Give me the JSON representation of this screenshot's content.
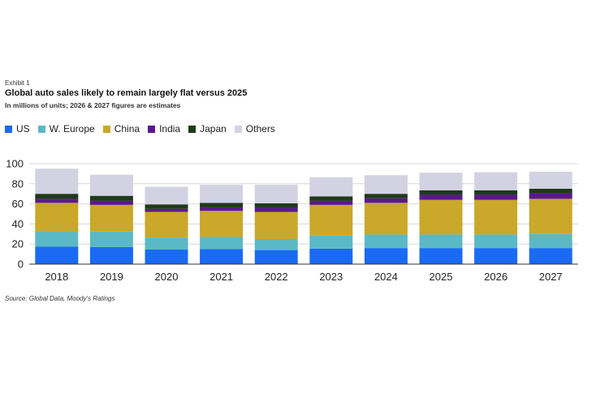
{
  "header": {
    "exhibit": "Exhibit 1",
    "title": "Global auto sales likely to remain largely flat versus 2025",
    "subtitle": "In millions of units; 2026 & 2027 figures are estimates"
  },
  "footer": {
    "source": "Source: Global Data, Moody's Ratings"
  },
  "chart_data": {
    "type": "bar",
    "stacked": true,
    "categories": [
      "2018",
      "2019",
      "2020",
      "2021",
      "2022",
      "2023",
      "2024",
      "2025",
      "2026",
      "2027"
    ],
    "series": [
      {
        "name": "US",
        "color": "#1a6af4",
        "values": [
          17.5,
          17,
          14.5,
          15,
          14,
          15.5,
          16,
          16,
          16,
          16
        ]
      },
      {
        "name": "W. Europe",
        "color": "#5bb9c5",
        "values": [
          15.5,
          15.5,
          12,
          12,
          11,
          13,
          13.5,
          13.5,
          13.5,
          14
        ]
      },
      {
        "name": "China",
        "color": "#c9a82a",
        "values": [
          28,
          26.5,
          25.5,
          26,
          27,
          30.5,
          31.5,
          34.5,
          34.5,
          35
        ]
      },
      {
        "name": "India",
        "color": "#5a1890",
        "values": [
          4,
          4,
          3,
          3.5,
          4,
          4,
          4.5,
          5,
          5,
          5.5
        ]
      },
      {
        "name": "Japan",
        "color": "#1f3a1a",
        "values": [
          5,
          5,
          4.5,
          4.5,
          4.5,
          4.5,
          4.5,
          4.5,
          4.5,
          4.5
        ]
      },
      {
        "name": "Others",
        "color": "#d3d2e2",
        "values": [
          25,
          21,
          17.5,
          18,
          18.5,
          19,
          18.5,
          17.5,
          18,
          17
        ]
      }
    ],
    "yticks": [
      0,
      20,
      40,
      60,
      80,
      100
    ],
    "ylim": [
      0,
      100
    ],
    "grid": true,
    "legend_position": "top-left"
  }
}
